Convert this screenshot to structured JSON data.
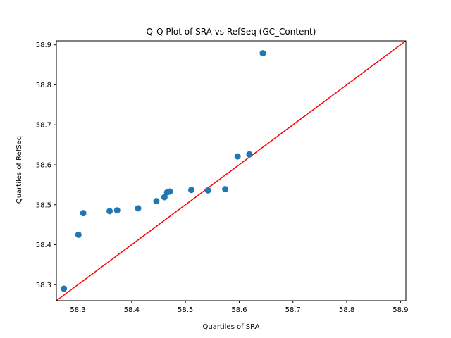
{
  "chart_data": {
    "type": "scatter",
    "title": "Q-Q Plot of SRA vs RefSeq (GC_Content)",
    "xlabel": "Quartiles of SRA",
    "ylabel": "Quartiles of RefSeq",
    "xlim": [
      58.26,
      58.91
    ],
    "ylim": [
      58.26,
      58.91
    ],
    "xticks": [
      58.3,
      58.4,
      58.5,
      58.6,
      58.7,
      58.8,
      58.9
    ],
    "yticks": [
      58.3,
      58.4,
      58.5,
      58.6,
      58.7,
      58.8,
      58.9
    ],
    "tick_labels": [
      "58.3",
      "58.4",
      "58.5",
      "58.6",
      "58.7",
      "58.8",
      "58.9"
    ],
    "grid": false,
    "series": [
      {
        "marker_color": "#1f77b4",
        "points": [
          {
            "x": 58.274,
            "y": 58.29
          },
          {
            "x": 58.301,
            "y": 58.425
          },
          {
            "x": 58.31,
            "y": 58.479
          },
          {
            "x": 58.359,
            "y": 58.484
          },
          {
            "x": 58.373,
            "y": 58.486
          },
          {
            "x": 58.412,
            "y": 58.491
          },
          {
            "x": 58.446,
            "y": 58.509
          },
          {
            "x": 58.461,
            "y": 58.519
          },
          {
            "x": 58.466,
            "y": 58.531
          },
          {
            "x": 58.471,
            "y": 58.533
          },
          {
            "x": 58.511,
            "y": 58.537
          },
          {
            "x": 58.542,
            "y": 58.536
          },
          {
            "x": 58.574,
            "y": 58.539
          },
          {
            "x": 58.597,
            "y": 58.621
          },
          {
            "x": 58.619,
            "y": 58.626
          },
          {
            "x": 58.644,
            "y": 58.879
          }
        ]
      }
    ],
    "reference_line": {
      "type": "y=x",
      "color": "#ff0000"
    }
  }
}
